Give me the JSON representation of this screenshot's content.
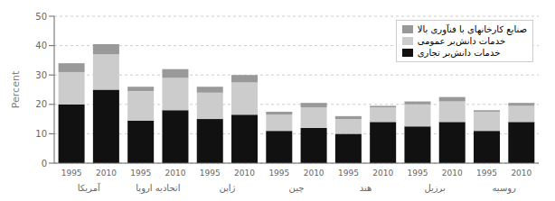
{
  "chart_data": {
    "type": "bar",
    "stacked": true,
    "categories": [
      "1995",
      "2010",
      "1995",
      "2010",
      "1995",
      "2010",
      "1995",
      "2010",
      "1995",
      "2010",
      "1995",
      "2010",
      "1995",
      "2010"
    ],
    "groups": [
      "آمریکا",
      "اتحادیه اروپا",
      "ژاپن",
      "چین",
      "هند",
      "برزیل",
      "روسیه"
    ],
    "ylabel": "Percent",
    "ylim": [
      0,
      50
    ],
    "yticks": [
      0,
      10,
      20,
      30,
      40,
      50
    ],
    "grid": true,
    "legend": "upper right",
    "series": [
      {
        "name": "خدمات دانش‌بر تجاری",
        "color": "#111111",
        "values": [
          20.0,
          25.0,
          14.5,
          18.0,
          15.0,
          16.5,
          11.0,
          12.0,
          10.0,
          14.0,
          12.5,
          14.0,
          11.0,
          14.0
        ]
      },
      {
        "name": "خدمات دانش‌بر عمومی",
        "color": "#cccccc",
        "values": [
          11.0,
          12.0,
          10.0,
          11.0,
          9.0,
          11.0,
          5.5,
          7.0,
          5.0,
          5.0,
          7.5,
          7.0,
          6.5,
          5.5
        ]
      },
      {
        "name": "صنایع کارخانهای با فنآوری بالا",
        "color": "#999999",
        "values": [
          3.0,
          3.5,
          1.5,
          3.0,
          2.0,
          2.5,
          1.0,
          1.5,
          1.0,
          0.5,
          1.0,
          1.5,
          0.5,
          1.0
        ]
      }
    ]
  }
}
